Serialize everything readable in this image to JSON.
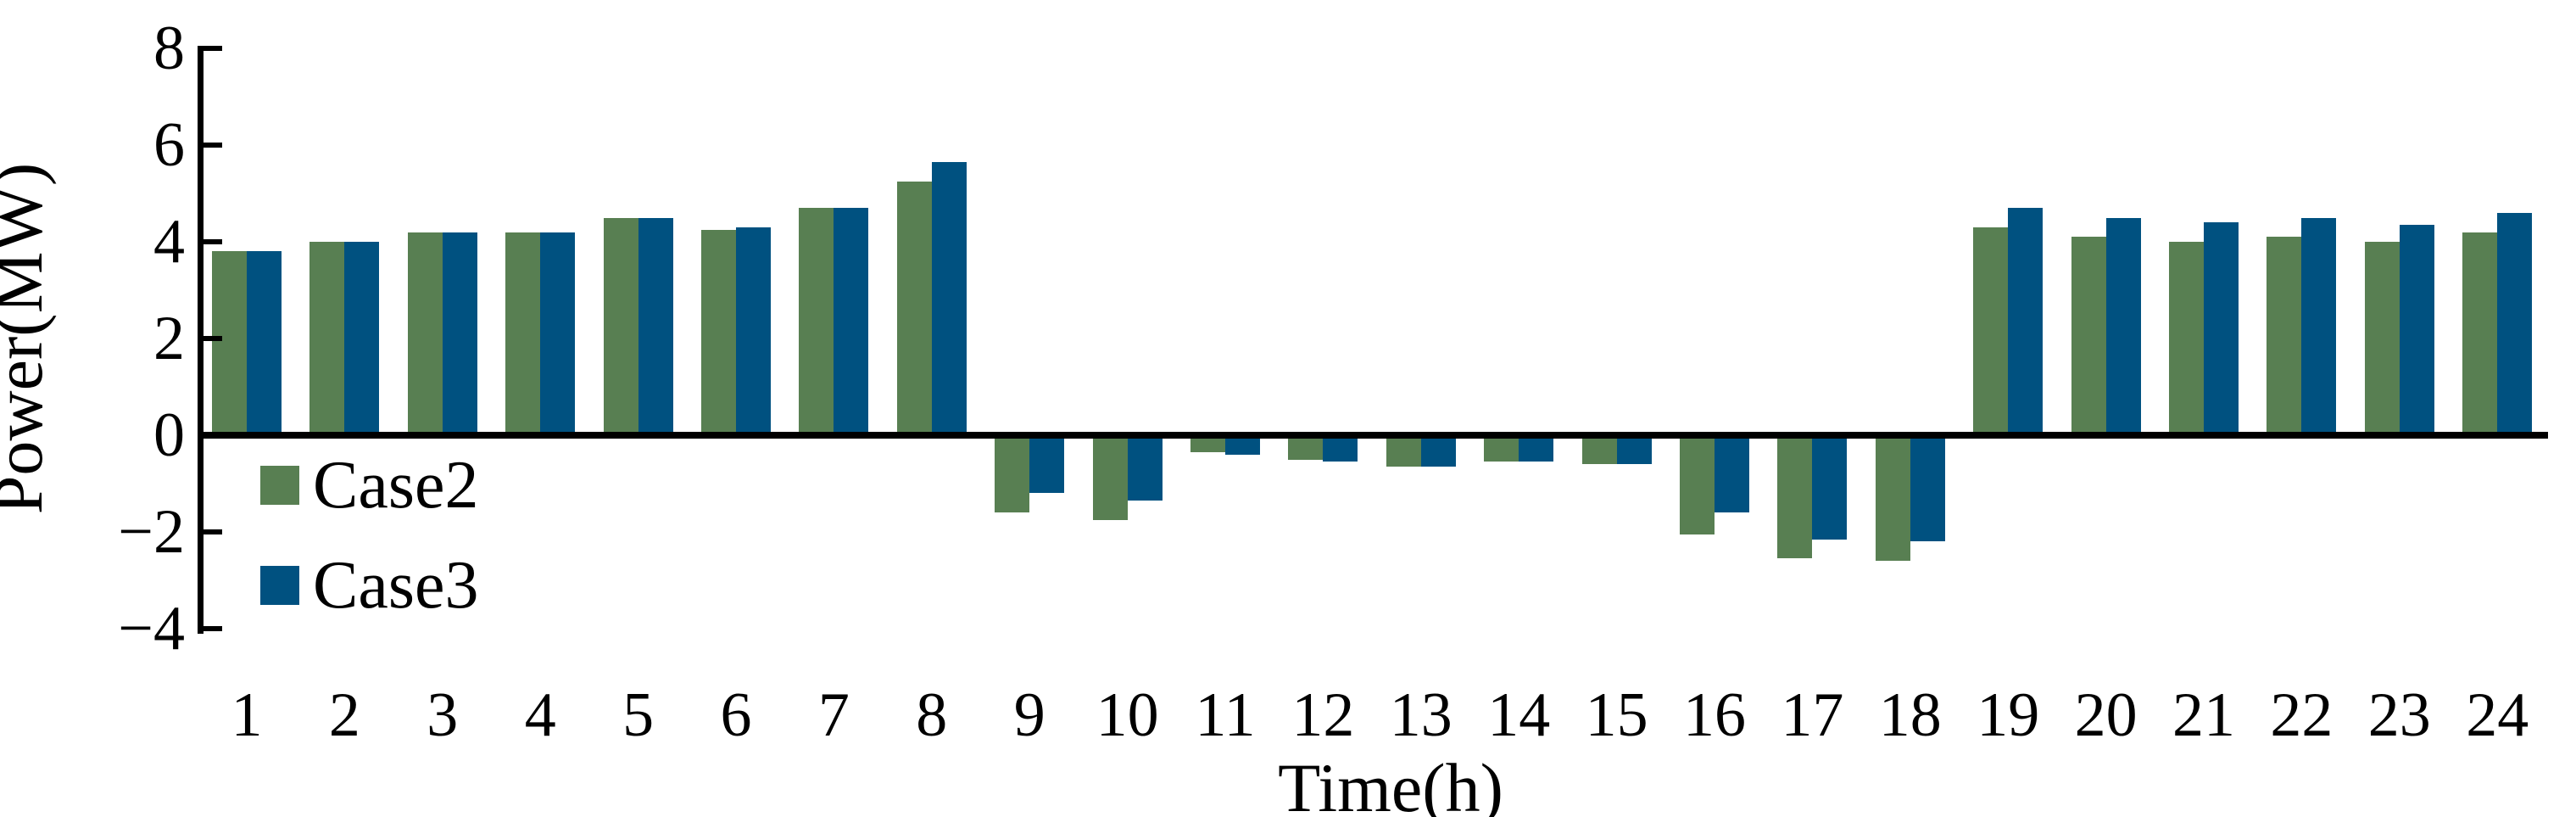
{
  "chart_data": {
    "type": "bar",
    "title": "",
    "xlabel": "Time(h)",
    "ylabel": "Power(MW)",
    "categories": [
      "1",
      "2",
      "3",
      "4",
      "5",
      "6",
      "7",
      "8",
      "9",
      "10",
      "11",
      "12",
      "13",
      "14",
      "15",
      "16",
      "17",
      "18",
      "19",
      "20",
      "21",
      "22",
      "23",
      "24"
    ],
    "series": [
      {
        "name": "Case2",
        "color": "#587f52",
        "values": [
          3.8,
          4.0,
          4.2,
          4.2,
          4.5,
          4.25,
          4.7,
          5.25,
          -1.6,
          -1.75,
          -0.35,
          -0.5,
          -0.65,
          -0.55,
          -0.6,
          -2.05,
          -2.55,
          -2.6,
          4.3,
          4.1,
          4.0,
          4.1,
          4.0,
          4.2
        ]
      },
      {
        "name": "Case3",
        "color": "#005180",
        "values": [
          3.8,
          4.0,
          4.2,
          4.2,
          4.5,
          4.3,
          4.7,
          5.65,
          -1.2,
          -1.35,
          -0.4,
          -0.55,
          -0.65,
          -0.55,
          -0.6,
          -1.6,
          -2.15,
          -2.2,
          4.7,
          4.5,
          4.4,
          4.5,
          4.35,
          4.6
        ]
      }
    ],
    "ylim": [
      -4,
      8
    ],
    "y_ticks": [
      {
        "label": "8",
        "value": 8
      },
      {
        "label": "6",
        "value": 6
      },
      {
        "label": "4",
        "value": 4
      },
      {
        "label": "2",
        "value": 2
      },
      {
        "label": "0",
        "value": 0
      },
      {
        "label": "−2",
        "value": -2
      },
      {
        "label": "−4",
        "value": -4
      }
    ],
    "grid": false,
    "legend_position": "inside-upper-left-below-zero-line",
    "axis_color": "#000000",
    "background_color": "#ffffff"
  }
}
